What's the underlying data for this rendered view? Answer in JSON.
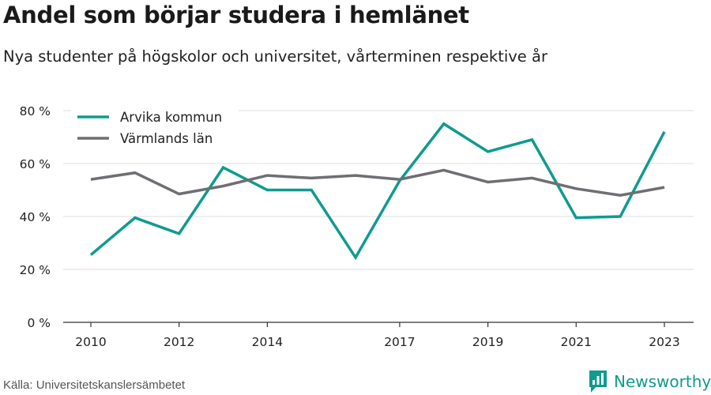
{
  "title": "Andel som börjar studera i hemlänet",
  "subtitle": "Nya studenter på högskolor och universitet, vårterminen respektive år",
  "source": "Källa: Universitetskanslersämbetet",
  "brand": {
    "name": "Newsworthy",
    "icon": "bar-chart-logo-icon",
    "color": "#0f9b8e"
  },
  "chart_data": {
    "type": "line",
    "x": [
      2010,
      2011,
      2012,
      2013,
      2014,
      2015,
      2016,
      2017,
      2018,
      2019,
      2020,
      2021,
      2022,
      2023
    ],
    "x_tick_labels": [
      "2010",
      "2012",
      "2014",
      "2017",
      "2019",
      "2021",
      "2023"
    ],
    "x_ticks": [
      2010,
      2012,
      2014,
      2017,
      2019,
      2021,
      2023
    ],
    "y_ticks": [
      0,
      20,
      40,
      60,
      80
    ],
    "y_tick_labels": [
      "0 %",
      "20 %",
      "40 %",
      "60 %",
      "80 %"
    ],
    "ylim": [
      0,
      80
    ],
    "grid": true,
    "legend_position": "top-left",
    "series": [
      {
        "name": "Arvika kommun",
        "color": "#0f9b8e",
        "values": [
          25.5,
          39.5,
          33.5,
          58.5,
          50,
          50,
          24.5,
          53.5,
          75,
          64.5,
          69,
          39.5,
          40,
          72
        ]
      },
      {
        "name": "Värmlands län",
        "color": "#6e6e73",
        "values": [
          54,
          56.5,
          48.5,
          51.5,
          55.5,
          54.5,
          55.5,
          54,
          57.5,
          53,
          54.5,
          50.5,
          48,
          51
        ]
      }
    ]
  }
}
